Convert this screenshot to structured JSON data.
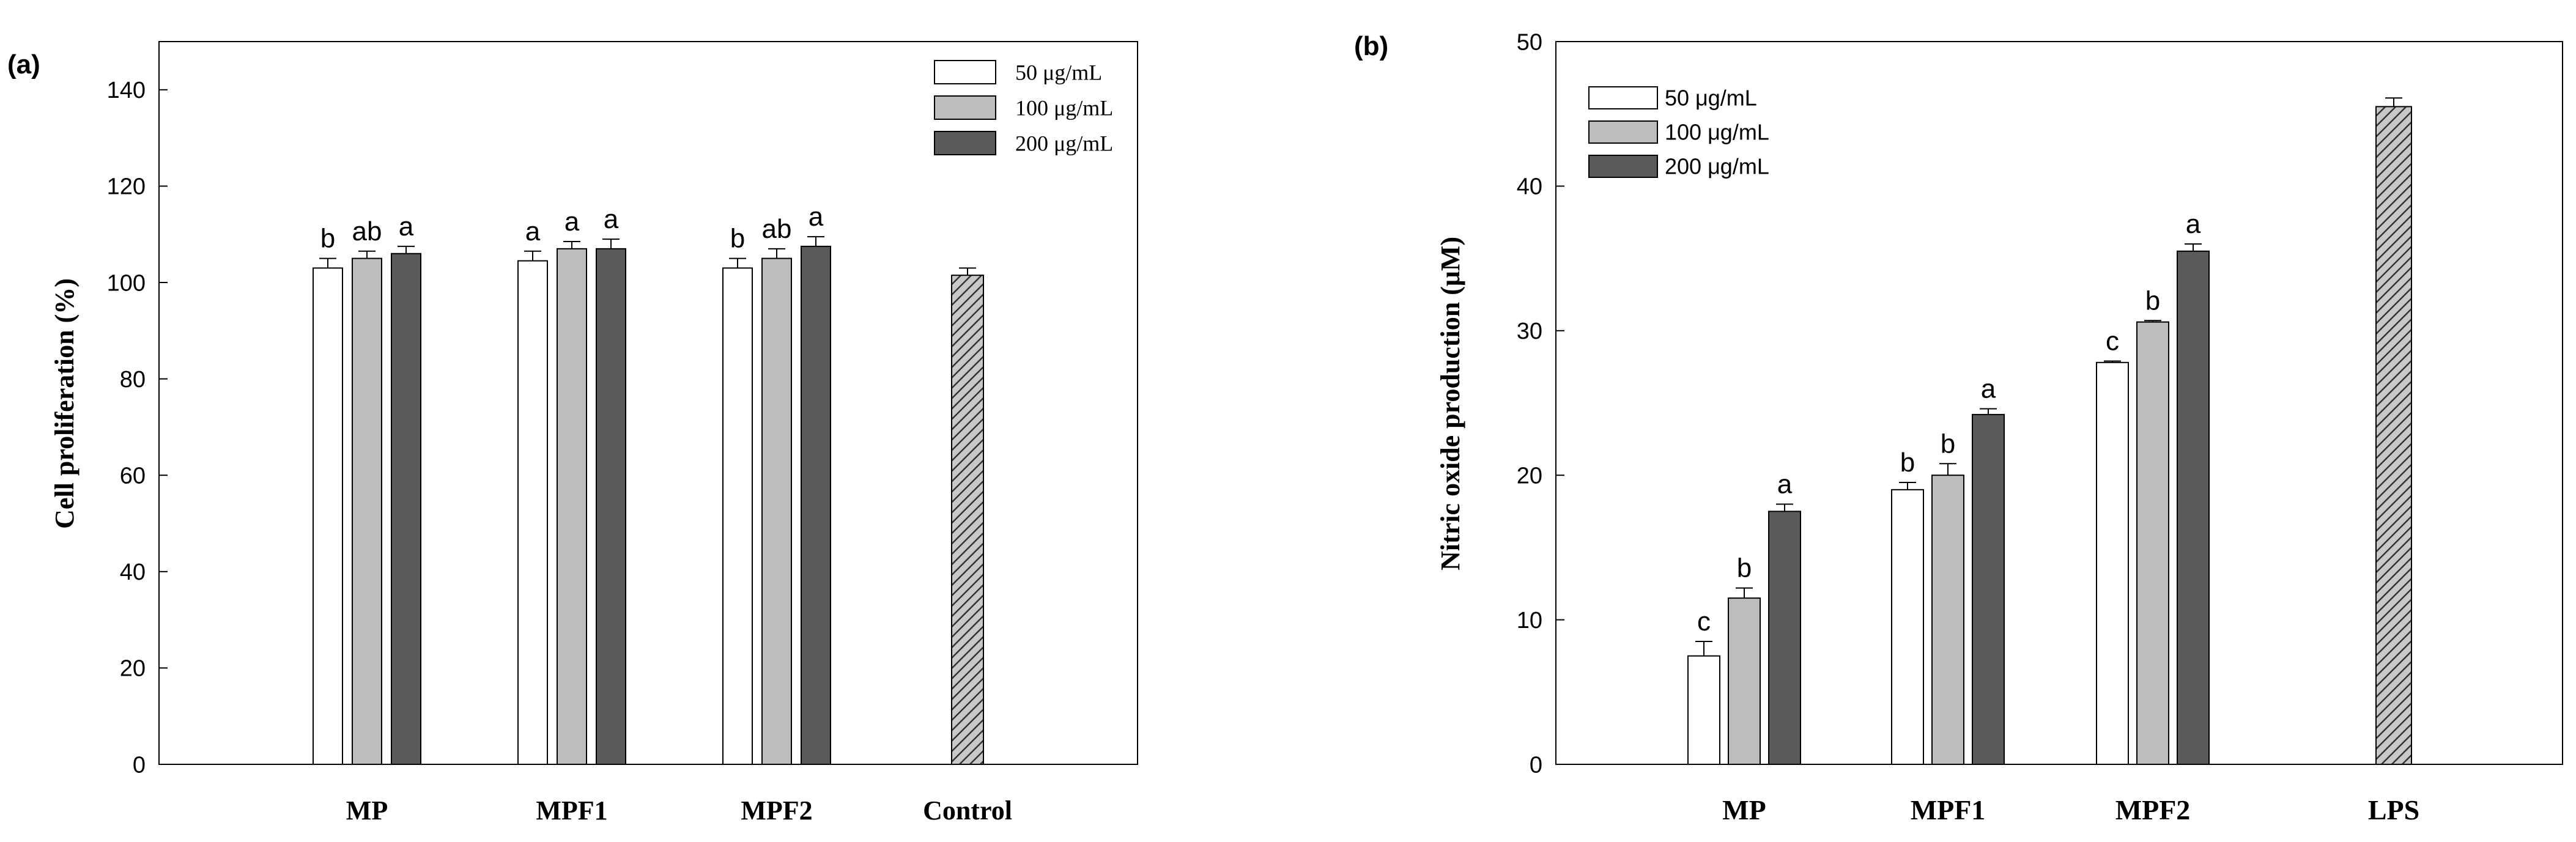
{
  "colors": {
    "c50": "#ffffff",
    "c100": "#bdbdbd",
    "c200": "#5a5a5a",
    "control": "#c0c0c0",
    "stroke": "#000000"
  },
  "chart_data": [
    {
      "panel": "(a)",
      "type": "bar",
      "title": "",
      "xlabel": "",
      "ylabel": "Cell proliferation (%)",
      "ylim": [
        0,
        150
      ],
      "yticks": [
        "0",
        "20",
        "40",
        "60",
        "80",
        "100",
        "120",
        "140"
      ],
      "categories": [
        "MP",
        "MPF1",
        "MPF2",
        "Control"
      ],
      "legend_position": "top-right",
      "series": [
        {
          "name": "50  μg/mL",
          "values": [
            103,
            104.5,
            103,
            null
          ],
          "errors": [
            2,
            2,
            2,
            null
          ],
          "letters": [
            "b",
            "a",
            "b",
            null
          ]
        },
        {
          "name": "100 μg/mL",
          "values": [
            105,
            107,
            105,
            null
          ],
          "errors": [
            1.5,
            1.5,
            2,
            null
          ],
          "letters": [
            "ab",
            "a",
            "ab",
            null
          ]
        },
        {
          "name": "200 μg/mL",
          "values": [
            106,
            107,
            107.5,
            null
          ],
          "errors": [
            1.5,
            2,
            2,
            null
          ],
          "letters": [
            "a",
            "a",
            "a",
            null
          ]
        }
      ],
      "reference": {
        "name": "Control",
        "value": 101.5,
        "error": 1.5
      }
    },
    {
      "panel": "(b)",
      "type": "bar",
      "title": "",
      "xlabel": "",
      "ylabel": "Nitric oxide production (μM)",
      "ylim": [
        0,
        50
      ],
      "yticks": [
        "0",
        "10",
        "20",
        "30",
        "40",
        "50"
      ],
      "categories": [
        "MP",
        "MPF1",
        "MPF2",
        "LPS"
      ],
      "legend_position": "top-left",
      "series": [
        {
          "name": "50   μg/mL",
          "values": [
            7.5,
            19,
            27.8,
            null
          ],
          "errors": [
            1,
            0.5,
            0.1,
            null
          ],
          "letters": [
            "c",
            "b",
            "c",
            null
          ]
        },
        {
          "name": "100 μg/mL",
          "values": [
            11.5,
            20,
            30.6,
            null
          ],
          "errors": [
            0.7,
            0.8,
            0.1,
            null
          ],
          "letters": [
            "b",
            "b",
            "b",
            null
          ]
        },
        {
          "name": "200 μg/mL",
          "values": [
            17.5,
            24.2,
            35.5,
            null
          ],
          "errors": [
            0.5,
            0.4,
            0.5,
            null
          ],
          "letters": [
            "a",
            "a",
            "a",
            null
          ]
        }
      ],
      "reference": {
        "name": "LPS",
        "value": 45.5,
        "error": 0.6
      }
    }
  ]
}
